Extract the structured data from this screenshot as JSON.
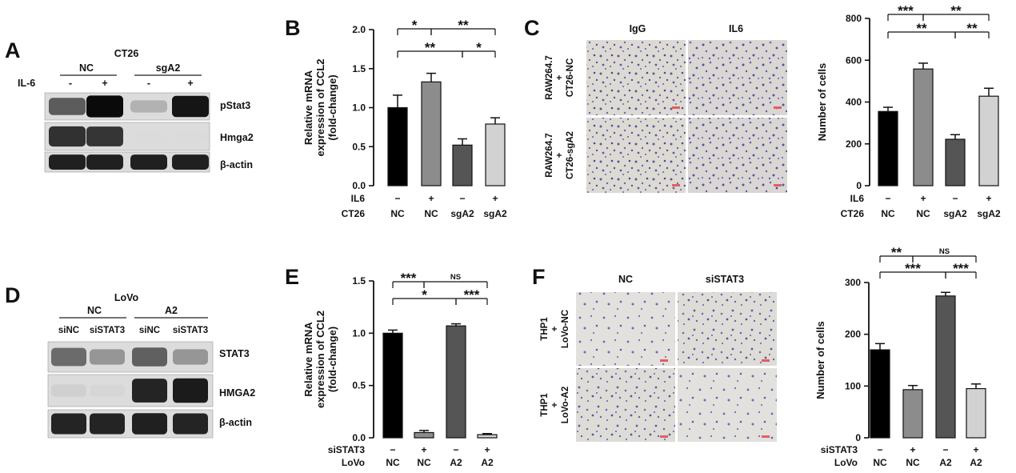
{
  "panels": {
    "A": {
      "letter": "A",
      "cell_line": "CT26",
      "groups": [
        "NC",
        "sgA2"
      ],
      "treatment_label": "IL-6",
      "treatment_marks": [
        "-",
        "+",
        "-",
        "+"
      ],
      "proteins": [
        "pStat3",
        "Hmga2",
        "β-actin"
      ],
      "band_intensity": [
        [
          0.62,
          1.0,
          0.22,
          0.95
        ],
        [
          0.82,
          0.8,
          0.03,
          0.03
        ],
        [
          0.9,
          0.9,
          0.9,
          0.9
        ]
      ]
    },
    "B": {
      "letter": "B"
    },
    "C": {
      "letter": "C",
      "col_headers": [
        "IgG",
        "IL6"
      ],
      "row_labels": [
        [
          "RAW264.7",
          "+",
          "CT26-NC"
        ],
        [
          "RAW264.7",
          "+",
          "CT26-sgA2"
        ]
      ]
    },
    "D": {
      "letter": "D",
      "cell_line": "LoVo",
      "groups": [
        "NC",
        "A2"
      ],
      "lanes": [
        "siNC",
        "siSTAT3",
        "siNC",
        "siSTAT3"
      ],
      "proteins": [
        "STAT3",
        "HMGA2",
        "β-actin"
      ],
      "band_intensity": [
        [
          0.55,
          0.35,
          0.6,
          0.35
        ],
        [
          0.08,
          0.05,
          0.88,
          0.92
        ],
        [
          0.88,
          0.88,
          0.9,
          0.88
        ]
      ]
    },
    "E": {
      "letter": "E"
    },
    "F": {
      "letter": "F",
      "col_headers": [
        "NC",
        "siSTAT3"
      ],
      "row_labels": [
        [
          "THP1",
          "+",
          "LoVo-NC"
        ],
        [
          "THP1",
          "+",
          "LoVo-A2"
        ]
      ]
    }
  },
  "chart_data": [
    {
      "panel": "B",
      "type": "bar",
      "ylabel": "Relative mRNA expression of CCL2 (fold-change)",
      "ylabel_lines": [
        "Relative mRNA",
        "expression of CCL2",
        "(fold-change)"
      ],
      "ylim": [
        0,
        2.0
      ],
      "yticks": [
        "0.0",
        "0.5",
        "1.0",
        "1.5",
        "2.0"
      ],
      "categories_rows": [
        {
          "label": "IL6",
          "values": [
            "−",
            "+",
            "−",
            "+"
          ]
        },
        {
          "label": "CT26",
          "values": [
            "NC",
            "NC",
            "sgA2",
            "sgA2"
          ]
        }
      ],
      "values": [
        1.0,
        1.33,
        0.52,
        0.79
      ],
      "errors": [
        0.16,
        0.11,
        0.08,
        0.08
      ],
      "colors": [
        "#000000",
        "#8c8c8c",
        "#555555",
        "#d2d2d2"
      ],
      "significance": [
        {
          "text": "**",
          "from": 0,
          "to": 2,
          "level": 2
        },
        {
          "text": "*",
          "from": 2,
          "to": 3,
          "level": 2
        },
        {
          "text": "*",
          "from": 0,
          "to": 1,
          "level": 1
        },
        {
          "text": "**",
          "from": 1,
          "to": 3,
          "level": 1
        }
      ]
    },
    {
      "panel": "C",
      "type": "bar",
      "ylabel": "Number of cells",
      "ylim": [
        0,
        800
      ],
      "yticks": [
        "0",
        "200",
        "400",
        "600",
        "800"
      ],
      "categories_rows": [
        {
          "label": "IL6",
          "values": [
            "−",
            "+",
            "−",
            "+"
          ]
        },
        {
          "label": "CT26",
          "values": [
            "NC",
            "NC",
            "sgA2",
            "sgA2"
          ]
        }
      ],
      "values": [
        355,
        558,
        222,
        428
      ],
      "errors": [
        20,
        28,
        22,
        38
      ],
      "colors": [
        "#000000",
        "#8c8c8c",
        "#555555",
        "#d2d2d2"
      ],
      "significance": [
        {
          "text": "**",
          "from": 0,
          "to": 2,
          "level": 2
        },
        {
          "text": "**",
          "from": 2,
          "to": 3,
          "level": 2
        },
        {
          "text": "***",
          "from": 0,
          "to": 1,
          "level": 1
        },
        {
          "text": "**",
          "from": 1,
          "to": 3,
          "level": 1
        }
      ]
    },
    {
      "panel": "E",
      "type": "bar",
      "ylabel": "Relative mRNA expression of CCL2 (fold-change)",
      "ylabel_lines": [
        "Relative mRNA",
        "expression of CCL2",
        "(fold-change)"
      ],
      "ylim": [
        0,
        1.5
      ],
      "yticks": [
        "0.0",
        "0.5",
        "1.0",
        "1.5"
      ],
      "categories_rows": [
        {
          "label": "siSTAT3",
          "values": [
            "−",
            "+",
            "−",
            "+"
          ]
        },
        {
          "label": "LoVo",
          "values": [
            "NC",
            "NC",
            "A2",
            "A2"
          ]
        }
      ],
      "values": [
        1.0,
        0.05,
        1.07,
        0.03
      ],
      "errors": [
        0.03,
        0.02,
        0.02,
        0.01
      ],
      "colors": [
        "#000000",
        "#8c8c8c",
        "#555555",
        "#d2d2d2"
      ],
      "significance": [
        {
          "text": "*",
          "from": 0,
          "to": 2,
          "level": 2
        },
        {
          "text": "***",
          "from": 2,
          "to": 3,
          "level": 2
        },
        {
          "text": "***",
          "from": 0,
          "to": 1,
          "level": 1
        },
        {
          "text": "NS",
          "from": 1,
          "to": 3,
          "level": 1
        }
      ]
    },
    {
      "panel": "F",
      "type": "bar",
      "ylabel": "Number of cells",
      "ylim": [
        0,
        300
      ],
      "yticks": [
        "0",
        "100",
        "200",
        "300"
      ],
      "categories_rows": [
        {
          "label": "siSTAT3",
          "values": [
            "−",
            "+",
            "−",
            "+"
          ]
        },
        {
          "label": "LoVo",
          "values": [
            "NC",
            "NC",
            "A2",
            "A2"
          ]
        }
      ],
      "values": [
        170,
        93,
        274,
        95
      ],
      "errors": [
        12,
        8,
        7,
        9
      ],
      "colors": [
        "#000000",
        "#8c8c8c",
        "#555555",
        "#d2d2d2"
      ],
      "significance": [
        {
          "text": "***",
          "from": 0,
          "to": 2,
          "level": 2
        },
        {
          "text": "***",
          "from": 2,
          "to": 3,
          "level": 2
        },
        {
          "text": "**",
          "from": 0,
          "to": 1,
          "level": 1
        },
        {
          "text": "NS",
          "from": 1,
          "to": 3,
          "level": 1
        }
      ]
    }
  ]
}
